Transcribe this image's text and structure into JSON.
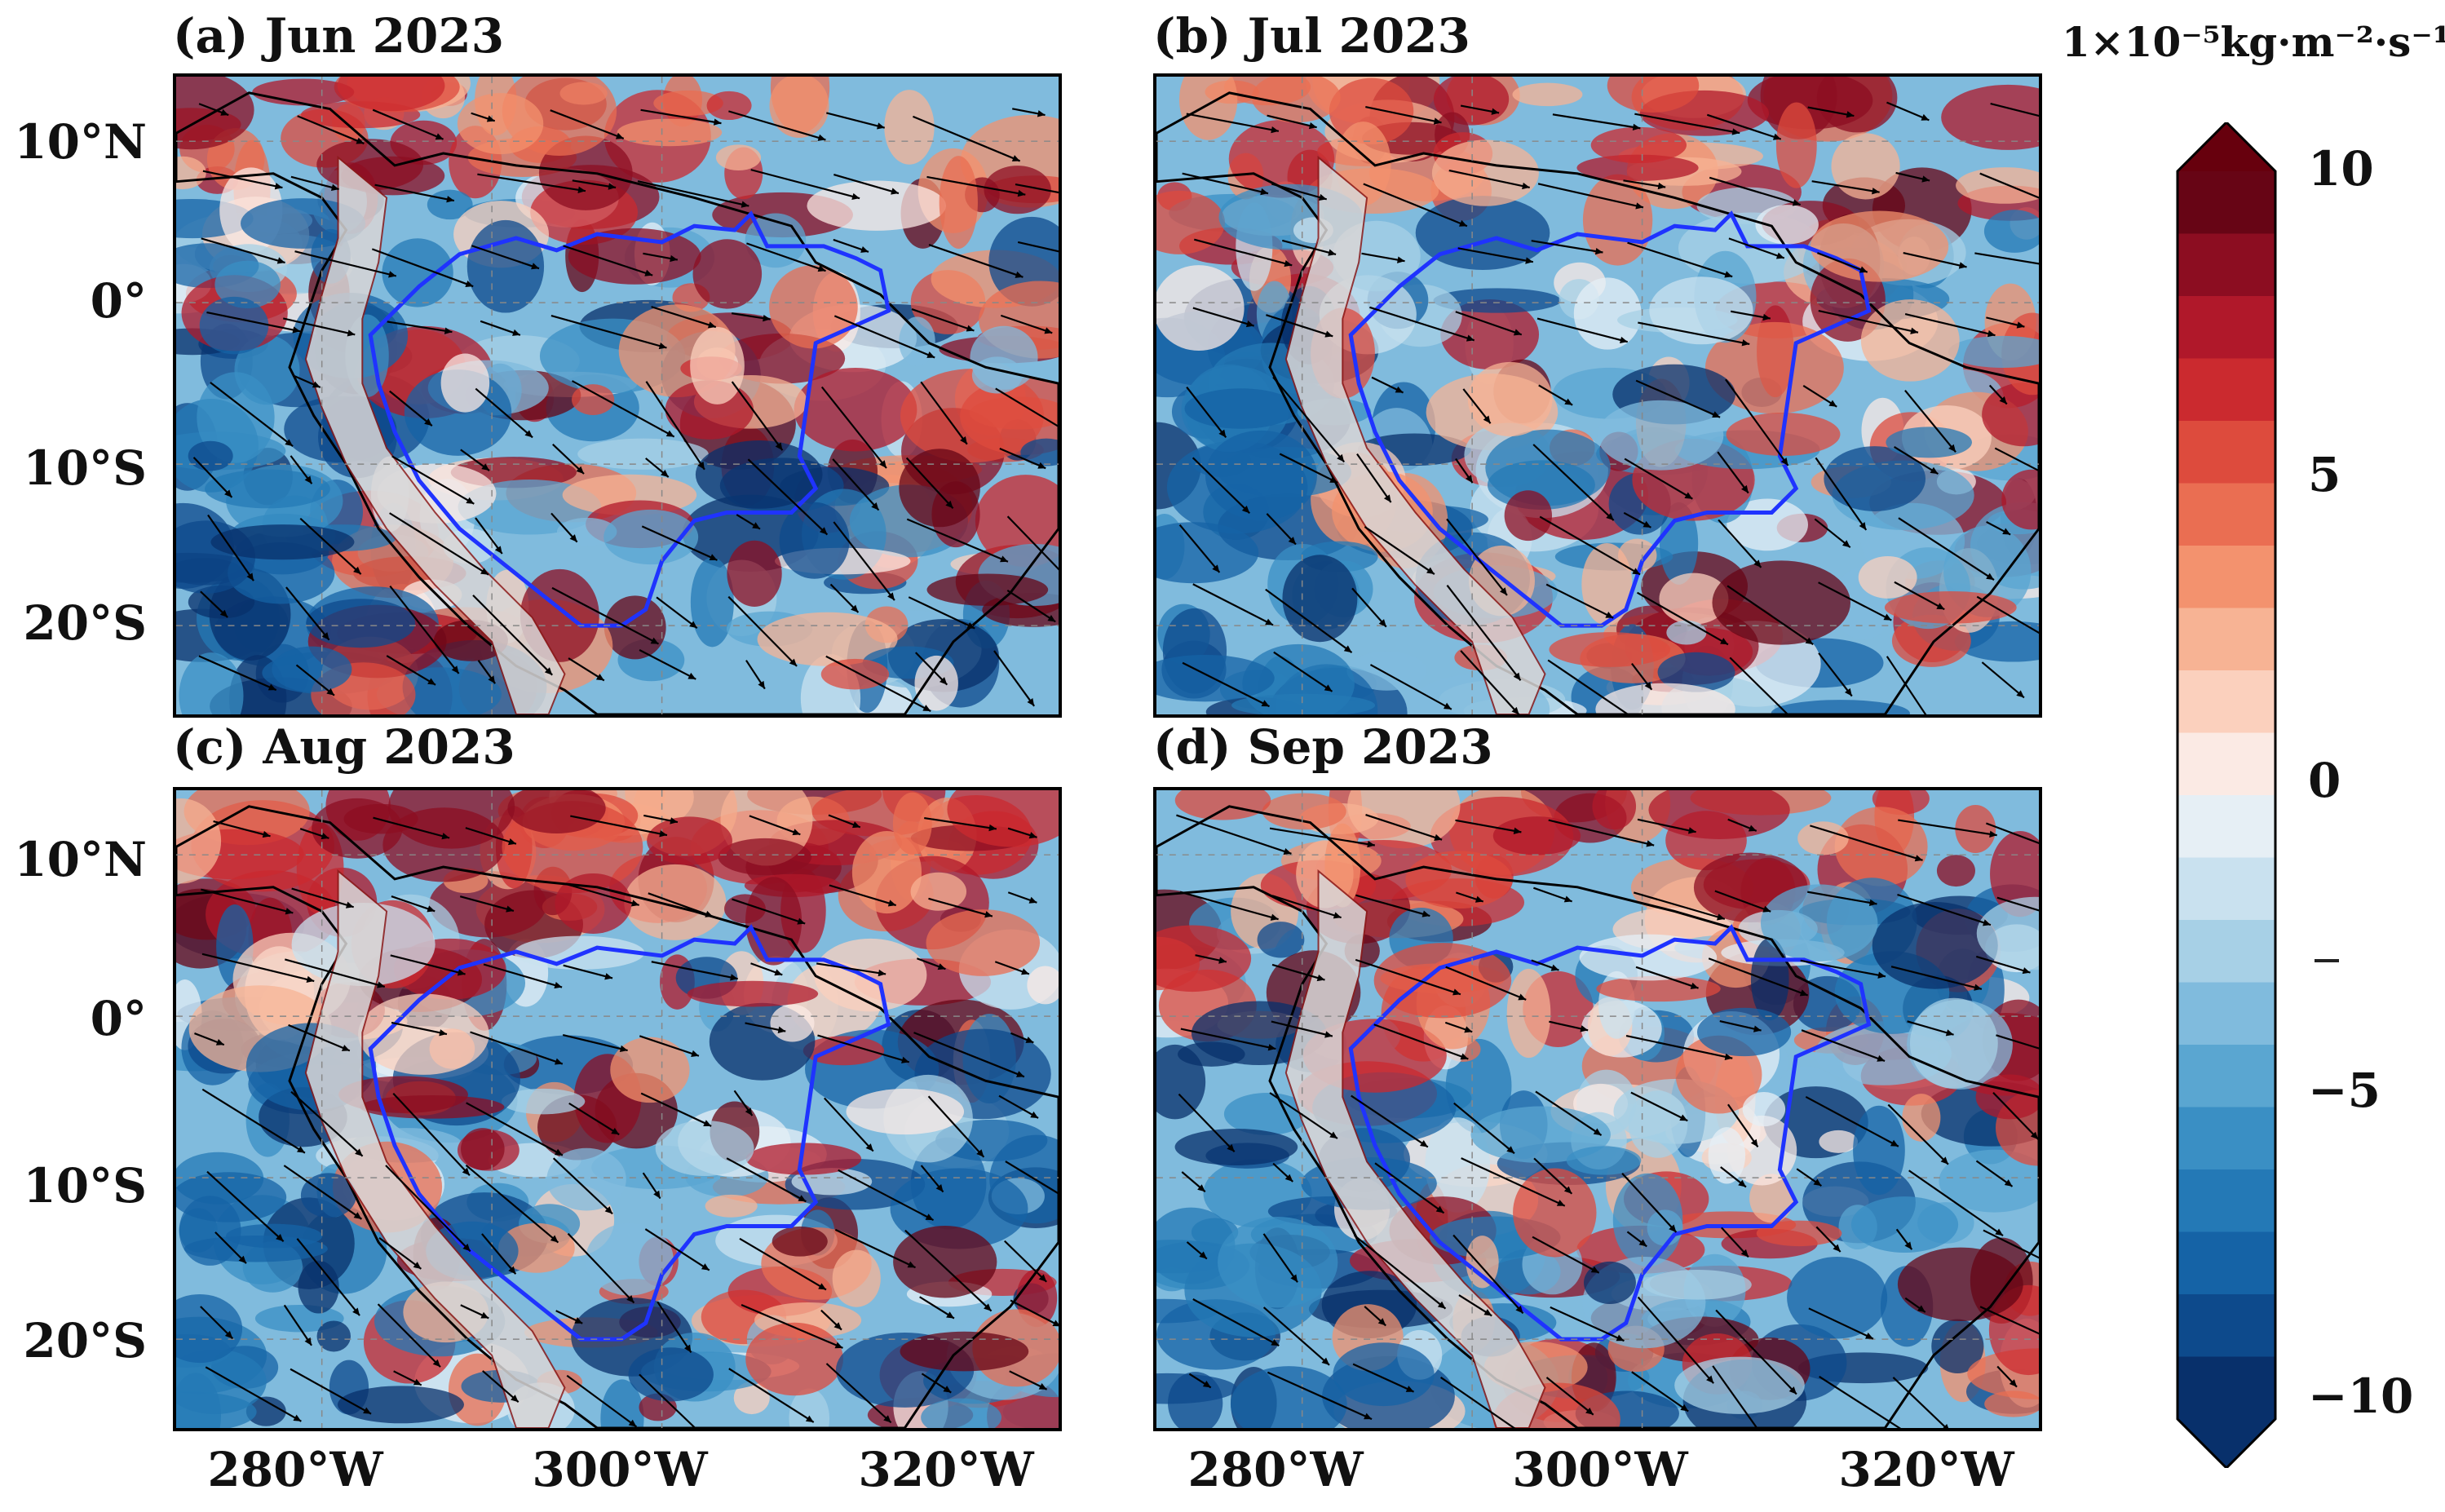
{
  "panels": [
    {
      "id": "a",
      "title": "(a) Jun 2023"
    },
    {
      "id": "b",
      "title": "(b) Jul 2023"
    },
    {
      "id": "c",
      "title": "(c) Aug 2023"
    },
    {
      "id": "d",
      "title": "(d) Sep 2023"
    }
  ],
  "lat_labels": [
    "10°N",
    "0°",
    "10°S",
    "20°S"
  ],
  "lon_labels": [
    "280°W",
    "300°W",
    "320°W"
  ],
  "colorbar": {
    "unit_label": "1×10⁻⁵kg·m⁻²·s⁻¹",
    "ticks": [
      "10",
      "5",
      "0",
      "−5",
      "−10"
    ],
    "range": [
      -10,
      10
    ],
    "colors": [
      "#08306b",
      "#0d4a8c",
      "#1563a6",
      "#2479b6",
      "#3a8fc4",
      "#5aa6d1",
      "#80bbdd",
      "#a7d0e6",
      "#c9e1ef",
      "#e6eff5",
      "#fbeae4",
      "#fbd0bd",
      "#f7b394",
      "#f3926e",
      "#ea6e52",
      "#dd4b3d",
      "#cb2a2f",
      "#b0182a",
      "#8c0d21",
      "#670515"
    ],
    "over_color": "#67000d",
    "under_color": "#08306b"
  },
  "map_colors": {
    "land_grey": "#d9d6d6",
    "basin_outline": "#1f33ff",
    "coast": "#000000"
  }
}
